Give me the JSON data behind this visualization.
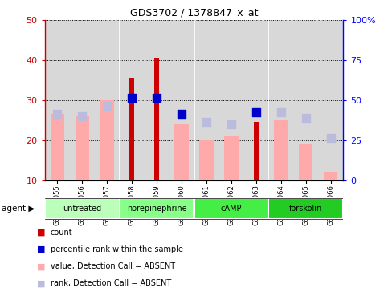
{
  "title": "GDS3702 / 1378847_x_at",
  "samples": [
    "GSM310055",
    "GSM310056",
    "GSM310057",
    "GSM310058",
    "GSM310059",
    "GSM310060",
    "GSM310061",
    "GSM310062",
    "GSM310063",
    "GSM310064",
    "GSM310065",
    "GSM310066"
  ],
  "groups": [
    {
      "label": "untreated",
      "indices": [
        0,
        1,
        2
      ],
      "color": "#bbffbb"
    },
    {
      "label": "norepinephrine",
      "indices": [
        3,
        4,
        5
      ],
      "color": "#88ff88"
    },
    {
      "label": "cAMP",
      "indices": [
        6,
        7,
        8
      ],
      "color": "#44ee44"
    },
    {
      "label": "forskolin",
      "indices": [
        9,
        10,
        11
      ],
      "color": "#22cc22"
    }
  ],
  "count_values": [
    null,
    null,
    null,
    35.5,
    40.5,
    null,
    null,
    null,
    24.5,
    null,
    null,
    null
  ],
  "percentile_rank": [
    null,
    null,
    null,
    30.5,
    30.5,
    26.5,
    null,
    null,
    27.0,
    null,
    null,
    null
  ],
  "value_absent": [
    26.5,
    26.0,
    30.0,
    null,
    null,
    24.0,
    20.0,
    21.0,
    null,
    25.0,
    19.0,
    12.0
  ],
  "rank_absent": [
    26.5,
    26.0,
    28.5,
    null,
    null,
    null,
    24.5,
    24.0,
    null,
    27.0,
    25.5,
    20.5
  ],
  "ylim_left": [
    10,
    50
  ],
  "ylim_right": [
    0,
    100
  ],
  "yticks_left": [
    10,
    20,
    30,
    40,
    50
  ],
  "yticks_right": [
    0,
    25,
    50,
    75,
    100
  ],
  "yticklabels_right": [
    "0",
    "25",
    "50",
    "75",
    "100%"
  ],
  "color_count": "#cc0000",
  "color_percentile": "#0000cc",
  "color_value_absent": "#ffaaaa",
  "color_rank_absent": "#bbbbdd",
  "legend_items": [
    {
      "color": "#cc0000",
      "label": "count"
    },
    {
      "color": "#0000cc",
      "label": "percentile rank within the sample"
    },
    {
      "color": "#ffaaaa",
      "label": "value, Detection Call = ABSENT"
    },
    {
      "color": "#bbbbdd",
      "label": "rank, Detection Call = ABSENT"
    }
  ]
}
